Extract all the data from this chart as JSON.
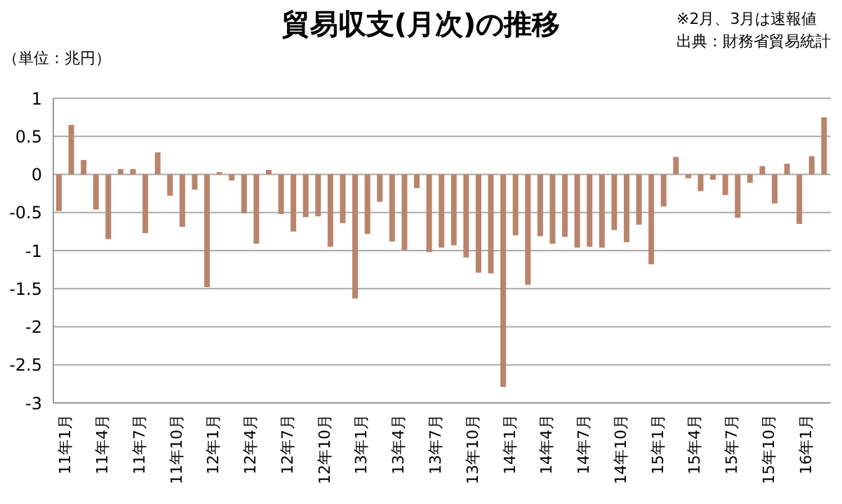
{
  "chart_data": {
    "type": "bar",
    "title": "貿易収支(月次)の推移",
    "ylabel": "（単位：兆円）",
    "annotations": [
      "※2月、3月は速報値",
      "出典：財務省貿易統計"
    ],
    "categories": [
      "11年1月",
      null,
      null,
      "11年4月",
      null,
      null,
      "11年7月",
      null,
      null,
      "11年10月",
      null,
      null,
      "12年1月",
      null,
      null,
      "12年4月",
      null,
      null,
      "12年7月",
      null,
      null,
      "12年10月",
      null,
      null,
      "13年1月",
      null,
      null,
      "13年4月",
      null,
      null,
      "13年7月",
      null,
      null,
      "13年10月",
      null,
      null,
      "14年1月",
      null,
      null,
      "14年4月",
      null,
      null,
      "14年7月",
      null,
      null,
      "14年10月",
      null,
      null,
      "15年1月",
      null,
      null,
      "15年4月",
      null,
      null,
      "15年7月",
      null,
      null,
      "15年10月",
      null,
      null,
      "16年1月",
      null,
      null
    ],
    "values": [
      -0.48,
      0.65,
      0.19,
      -0.46,
      -0.85,
      0.07,
      0.07,
      -0.77,
      0.29,
      -0.28,
      -0.69,
      -0.2,
      -1.48,
      0.03,
      -0.08,
      -0.51,
      -0.91,
      0.06,
      -0.52,
      -0.75,
      -0.56,
      -0.55,
      -0.95,
      -0.64,
      -1.63,
      -0.78,
      -0.36,
      -0.88,
      -0.99,
      -0.18,
      -1.02,
      -0.96,
      -0.93,
      -1.09,
      -1.29,
      -1.3,
      -2.79,
      -0.8,
      -1.45,
      -0.81,
      -0.91,
      -0.82,
      -0.96,
      -0.95,
      -0.96,
      -0.73,
      -0.89,
      -0.66,
      -1.18,
      -0.42,
      0.23,
      -0.05,
      -0.22,
      -0.07,
      -0.27,
      -0.57,
      -0.11,
      0.11,
      -0.38,
      0.14,
      -0.65,
      0.24,
      0.75
    ],
    "color": "#b9846c",
    "ylim": [
      -3,
      1
    ],
    "yticks": [
      1,
      0.5,
      0,
      -0.5,
      -1,
      -1.5,
      -2,
      -2.5,
      -3
    ],
    "grid": "y"
  }
}
